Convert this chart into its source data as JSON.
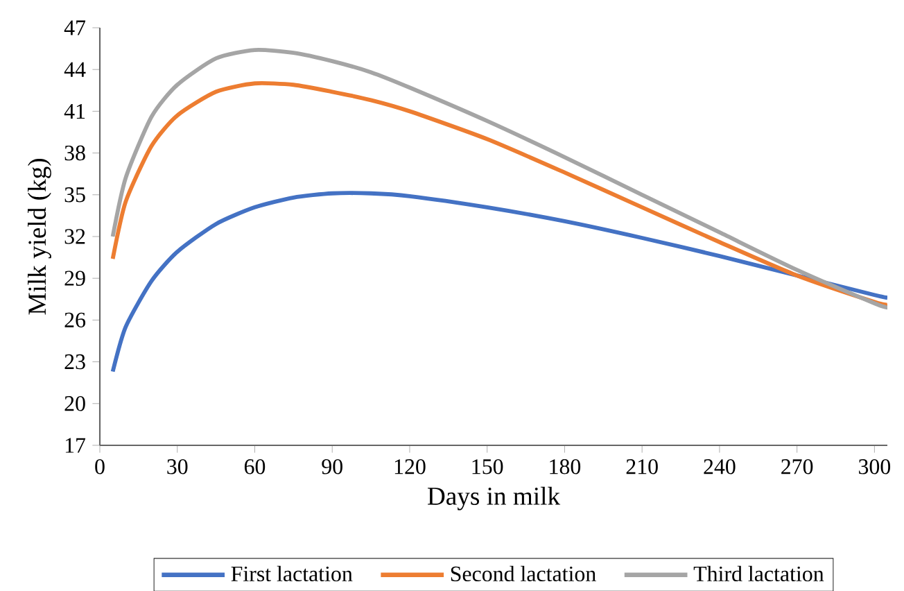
{
  "chart_data": {
    "type": "line",
    "xlabel": "Days in milk",
    "ylabel": "Milk yield (kg)",
    "xlim": [
      0,
      305
    ],
    "xticks": [
      0,
      30,
      60,
      90,
      120,
      150,
      180,
      210,
      240,
      270,
      300
    ],
    "ylim": [
      17,
      47
    ],
    "yticks": [
      17,
      20,
      23,
      26,
      29,
      32,
      35,
      38,
      41,
      44,
      47
    ],
    "grid": false,
    "legend": "bottom",
    "marker": "none",
    "line_style": "solid",
    "x": [
      5,
      10,
      20,
      30,
      45,
      60,
      75,
      90,
      105,
      120,
      150,
      180,
      210,
      240,
      270,
      300,
      305
    ],
    "series": [
      {
        "name": "First lactation",
        "color": "#4472c4",
        "values": [
          22.3,
          25.5,
          28.8,
          30.9,
          32.9,
          34.1,
          34.8,
          35.1,
          35.1,
          34.9,
          34.1,
          33.1,
          31.9,
          30.6,
          29.2,
          27.8,
          27.6
        ]
      },
      {
        "name": "Second lactation",
        "color": "#ed7d31",
        "values": [
          30.4,
          34.5,
          38.5,
          40.7,
          42.4,
          43.0,
          42.9,
          42.4,
          41.8,
          41.0,
          39.0,
          36.6,
          34.1,
          31.6,
          29.2,
          27.3,
          27.1
        ]
      },
      {
        "name": "Third lactation",
        "color": "#a5a5a5",
        "values": [
          32.0,
          36.2,
          40.6,
          42.9,
          44.8,
          45.4,
          45.2,
          44.6,
          43.8,
          42.7,
          40.3,
          37.7,
          35.0,
          32.3,
          29.6,
          27.2,
          26.9
        ]
      }
    ]
  }
}
